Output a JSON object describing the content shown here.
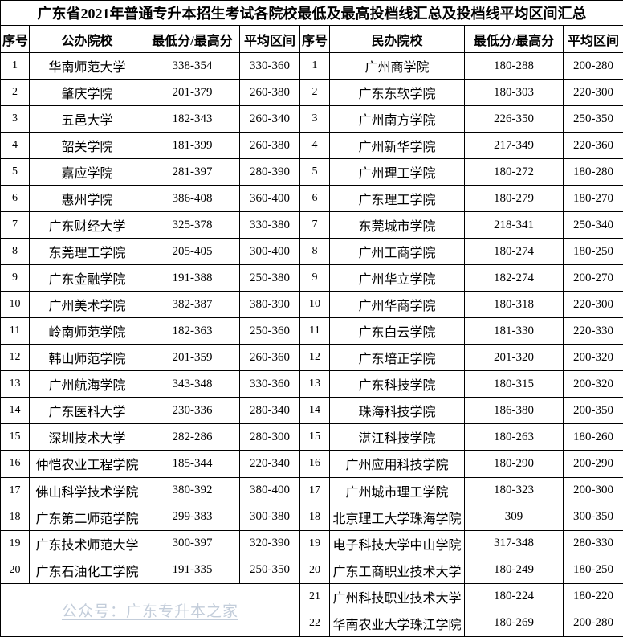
{
  "title": "广东省2021年普通专升本招生考试各院校最低及最高投档线汇总及投档线平均区间汇总",
  "watermark": "公众号：广东专升本之家",
  "colors": {
    "border": "#000000",
    "text": "#000000",
    "watermark": "#c3cdda",
    "background": "#ffffff"
  },
  "table": {
    "headers": [
      "序号",
      "公办院校",
      "最低分/最高分",
      "平均区间",
      "序号",
      "民办院校",
      "最低分/最高分",
      "平均区间"
    ],
    "left_rows": [
      [
        "1",
        "华南师范大学",
        "338-354",
        "330-360"
      ],
      [
        "2",
        "肇庆学院",
        "201-379",
        "260-380"
      ],
      [
        "3",
        "五邑大学",
        "182-343",
        "260-340"
      ],
      [
        "4",
        "韶关学院",
        "181-399",
        "260-380"
      ],
      [
        "5",
        "嘉应学院",
        "281-397",
        "280-390"
      ],
      [
        "6",
        "惠州学院",
        "386-408",
        "360-400"
      ],
      [
        "7",
        "广东财经大学",
        "325-378",
        "330-380"
      ],
      [
        "8",
        "东莞理工学院",
        "205-405",
        "300-400"
      ],
      [
        "9",
        "广东金融学院",
        "191-388",
        "250-380"
      ],
      [
        "10",
        "广州美术学院",
        "382-387",
        "380-390"
      ],
      [
        "11",
        "岭南师范学院",
        "182-363",
        "250-360"
      ],
      [
        "12",
        "韩山师范学院",
        "201-359",
        "260-360"
      ],
      [
        "13",
        "广州航海学院",
        "343-348",
        "330-360"
      ],
      [
        "14",
        "广东医科大学",
        "230-336",
        "280-340"
      ],
      [
        "15",
        "深圳技术大学",
        "282-286",
        "280-300"
      ],
      [
        "16",
        "仲恺农业工程学院",
        "185-344",
        "220-340"
      ],
      [
        "17",
        "佛山科学技术学院",
        "380-392",
        "380-400"
      ],
      [
        "18",
        "广东第二师范学院",
        "299-383",
        "300-380"
      ],
      [
        "19",
        "广东技术师范大学",
        "300-397",
        "320-390"
      ],
      [
        "20",
        "广东石油化工学院",
        "191-335",
        "250-350"
      ]
    ],
    "right_rows": [
      [
        "1",
        "广州商学院",
        "180-288",
        "200-280"
      ],
      [
        "2",
        "广东东软学院",
        "180-303",
        "220-300"
      ],
      [
        "3",
        "广州南方学院",
        "226-350",
        "250-350"
      ],
      [
        "4",
        "广州新华学院",
        "217-349",
        "220-360"
      ],
      [
        "5",
        "广州理工学院",
        "180-272",
        "180-280"
      ],
      [
        "6",
        "广东理工学院",
        "180-279",
        "180-270"
      ],
      [
        "7",
        "东莞城市学院",
        "218-341",
        "250-340"
      ],
      [
        "8",
        "广州工商学院",
        "180-274",
        "180-250"
      ],
      [
        "9",
        "广州华立学院",
        "182-274",
        "200-270"
      ],
      [
        "10",
        "广州华商学院",
        "180-318",
        "220-300"
      ],
      [
        "11",
        "广东白云学院",
        "181-330",
        "220-330"
      ],
      [
        "12",
        "广东培正学院",
        "201-320",
        "200-320"
      ],
      [
        "13",
        "广东科技学院",
        "180-315",
        "200-320"
      ],
      [
        "14",
        "珠海科技学院",
        "186-380",
        "200-350"
      ],
      [
        "15",
        "湛江科技学院",
        "180-263",
        "180-260"
      ],
      [
        "16",
        "广州应用科技学院",
        "180-290",
        "200-290"
      ],
      [
        "17",
        "广州城市理工学院",
        "180-323",
        "200-300"
      ],
      [
        "18",
        "北京理工大学珠海学院",
        "309",
        "300-350"
      ],
      [
        "19",
        "电子科技大学中山学院",
        "317-348",
        "280-330"
      ],
      [
        "20",
        "广东工商职业技术大学",
        "180-249",
        "180-250"
      ],
      [
        "21",
        "广州科技职业技术大学",
        "180-224",
        "180-220"
      ],
      [
        "22",
        "华南农业大学珠江学院",
        "180-269",
        "200-280"
      ]
    ]
  }
}
